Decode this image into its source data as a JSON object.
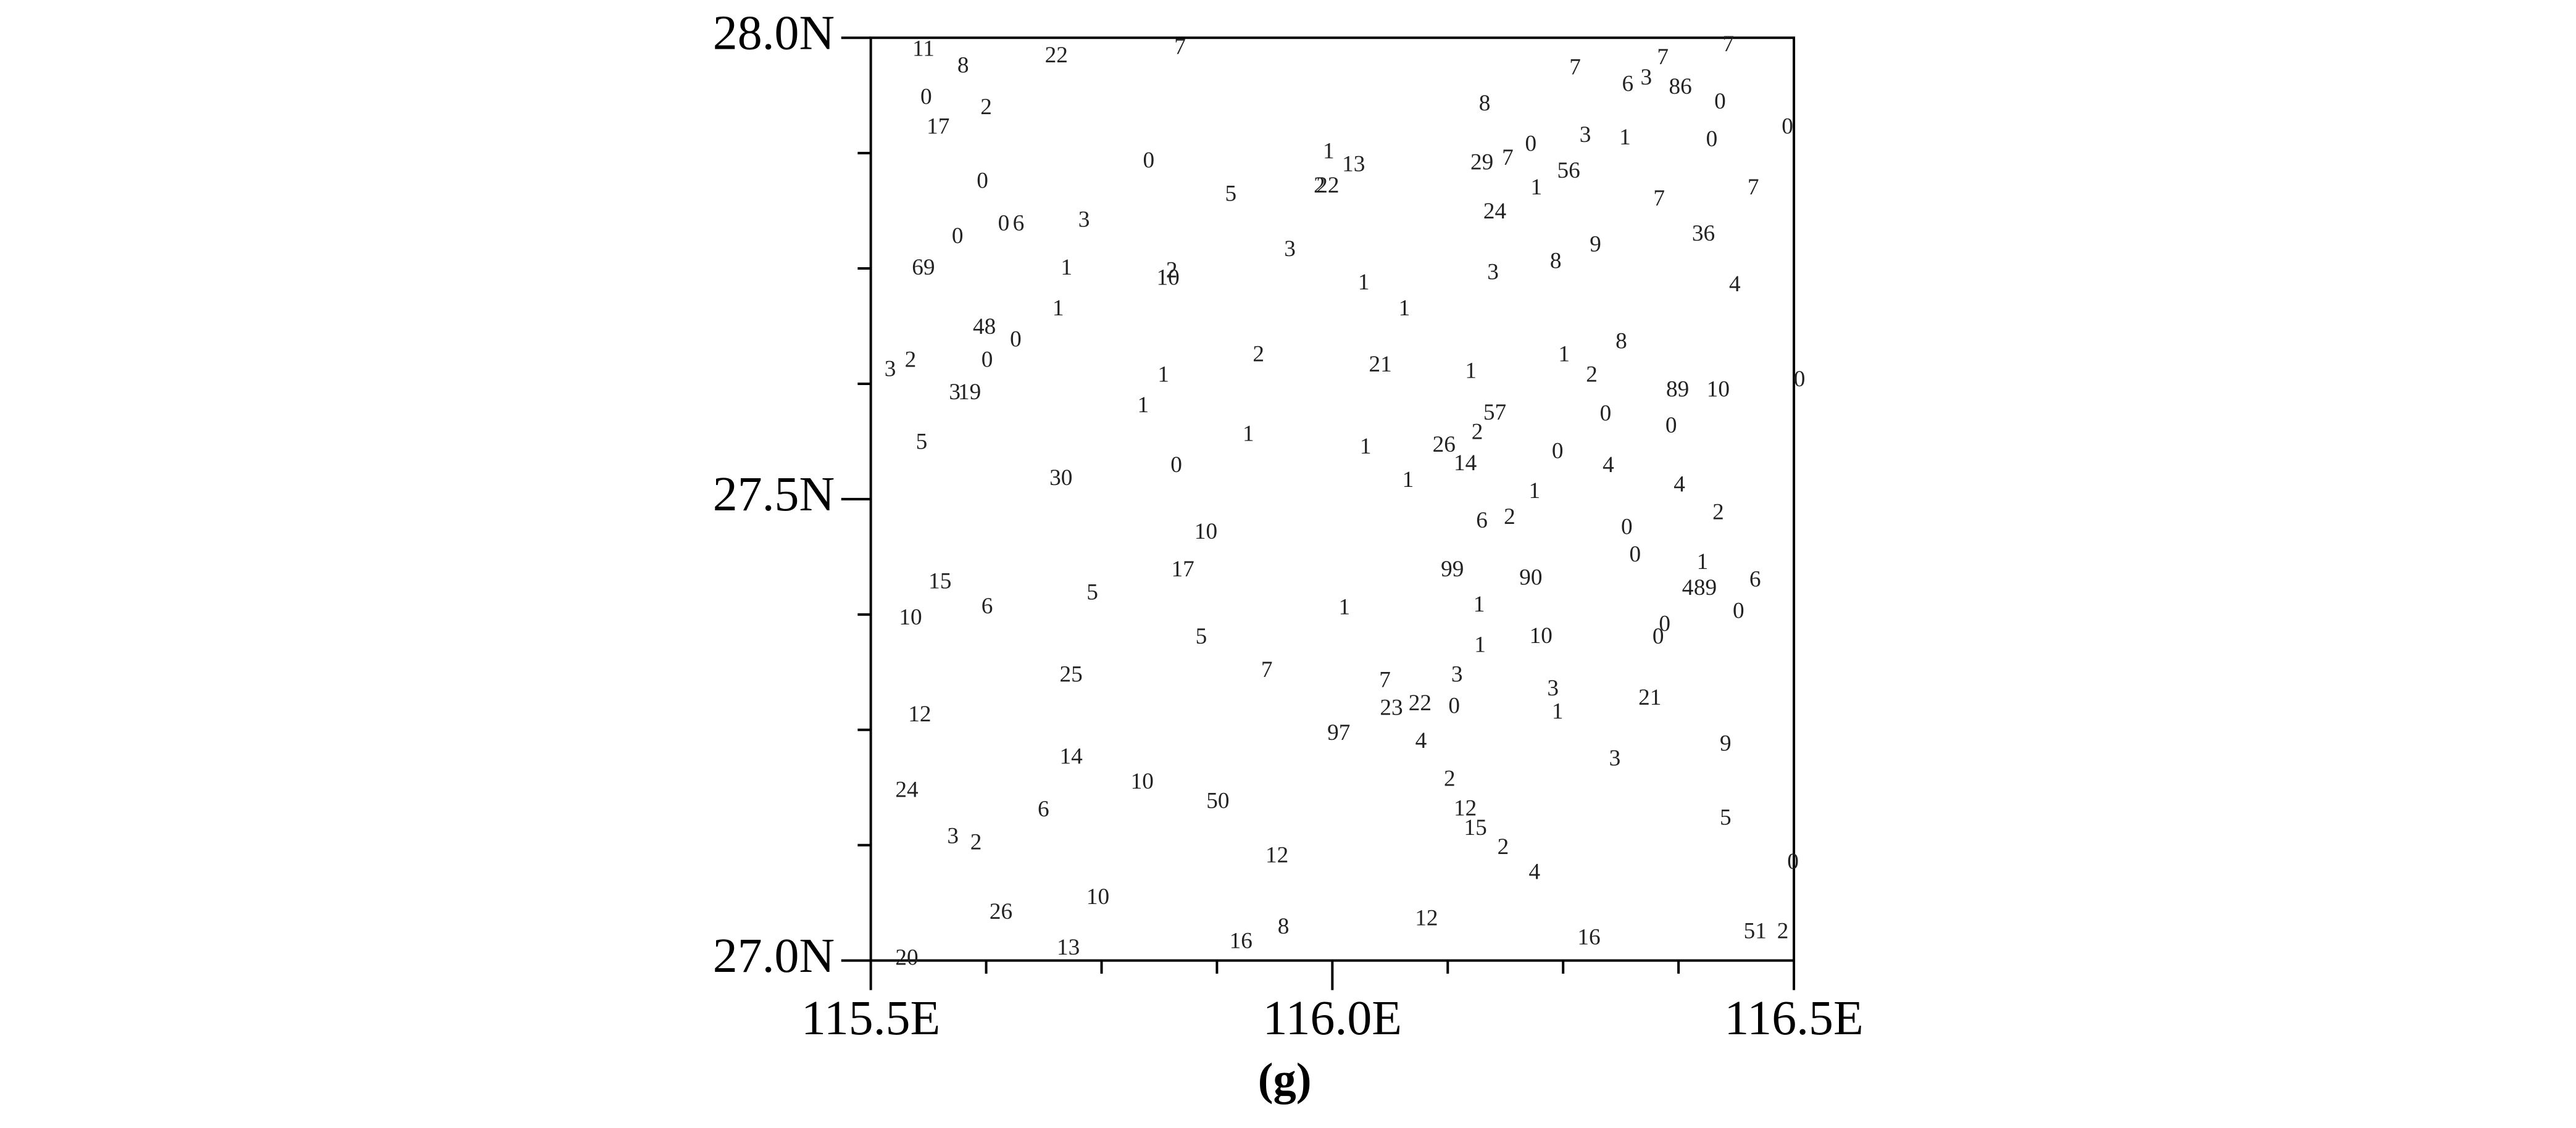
{
  "chart_data": {
    "type": "text-scatter",
    "caption": "(g)",
    "xlim": [
      115.5,
      116.5
    ],
    "ylim": [
      27.0,
      28.0
    ],
    "xticks": [
      {
        "value": 115.5,
        "label": "115.5E"
      },
      {
        "value": 116.0,
        "label": "116.0E"
      },
      {
        "value": 116.5,
        "label": "116.5E"
      }
    ],
    "yticks": [
      {
        "value": 27.0,
        "label": "27.0N"
      },
      {
        "value": 27.5,
        "label": "27.5N"
      },
      {
        "value": 28.0,
        "label": "28.0N"
      }
    ],
    "xminor": [
      115.625,
      115.75,
      115.875,
      116.125,
      116.25,
      116.375
    ],
    "yminor": [
      27.125,
      27.25,
      27.375,
      27.625,
      27.75,
      27.875
    ],
    "x": [
      115.557,
      115.6,
      115.701,
      115.835,
      115.56,
      115.625,
      115.573,
      115.621,
      115.594,
      115.644,
      115.66,
      115.731,
      115.557,
      115.712,
      115.822,
      115.826,
      115.703,
      115.623,
      115.657,
      115.626,
      115.521,
      115.543,
      115.591,
      115.607,
      115.555,
      115.706,
      115.817,
      115.795,
      115.831,
      115.801,
      115.89,
      115.954,
      115.92,
      115.909,
      115.996,
      116.023,
      115.986,
      115.995,
      116.034,
      116.078,
      116.052,
      116.036,
      116.082,
      116.165,
      116.162,
      116.19,
      116.215,
      116.274,
      116.317,
      116.256,
      116.221,
      116.176,
      116.174,
      116.242,
      116.285,
      116.263,
      116.32,
      116.34,
      116.358,
      116.377,
      116.429,
      116.42,
      116.493,
      116.411,
      116.354,
      116.456,
      116.402,
      116.436,
      116.313,
      116.251,
      116.281,
      116.15,
      116.176,
      116.157,
      116.121,
      116.144,
      116.296,
      116.374,
      116.418,
      116.506,
      116.367,
      116.244,
      116.299,
      116.219,
      116.376,
      116.418,
      116.162,
      116.192,
      116.319,
      116.328,
      116.401,
      116.385,
      116.404,
      116.458,
      116.44,
      116.36,
      116.353,
      115.863,
      115.838,
      116.13,
      116.215,
      116.159,
      116.013,
      116.16,
      116.226,
      115.575,
      115.543,
      115.626,
      115.74,
      115.858,
      115.929,
      115.717,
      115.553,
      116.057,
      116.135,
      116.064,
      116.095,
      116.132,
      116.239,
      116.244,
      116.344,
      116.007,
      116.096,
      116.426,
      116.306,
      115.717,
      115.794,
      115.876,
      115.539,
      115.687,
      116.127,
      116.144,
      116.155,
      116.185,
      116.219,
      116.426,
      116.499,
      115.589,
      115.614,
      115.94,
      115.641,
      115.746,
      115.947,
      115.901,
      116.102,
      116.278,
      116.458,
      116.488,
      115.714,
      115.539
    ],
    "y": [
      27.986,
      27.968,
      27.979,
      27.988,
      27.934,
      27.923,
      27.902,
      27.843,
      27.783,
      27.797,
      27.797,
      27.801,
      27.749,
      27.749,
      27.738,
      27.746,
      27.705,
      27.685,
      27.671,
      27.649,
      27.639,
      27.649,
      27.614,
      27.614,
      27.56,
      27.521,
      27.633,
      27.6,
      27.535,
      27.865,
      27.829,
      27.769,
      27.655,
      27.569,
      27.875,
      27.861,
      27.838,
      27.838,
      27.733,
      27.705,
      27.644,
      27.555,
      27.519,
      27.927,
      27.863,
      27.868,
      27.883,
      27.893,
      27.89,
      27.854,
      27.836,
      27.81,
      27.744,
      27.756,
      27.774,
      27.966,
      27.948,
      27.955,
      27.977,
      27.945,
      27.991,
      27.929,
      27.902,
      27.888,
      27.824,
      27.836,
      27.786,
      27.731,
      27.669,
      27.655,
      27.633,
      27.637,
      27.592,
      27.571,
      27.557,
      27.537,
      27.591,
      27.617,
      27.617,
      27.628,
      27.578,
      27.55,
      27.535,
      27.507,
      27.514,
      27.484,
      27.475,
      27.479,
      27.468,
      27.438,
      27.43,
      27.402,
      27.402,
      27.411,
      27.377,
      27.363,
      27.349,
      27.463,
      27.422,
      27.422,
      27.413,
      27.384,
      27.381,
      27.34,
      27.35,
      27.409,
      27.37,
      27.382,
      27.397,
      27.349,
      27.313,
      27.308,
      27.265,
      27.302,
      27.308,
      27.272,
      27.277,
      27.274,
      27.293,
      27.268,
      27.283,
      27.245,
      27.236,
      27.233,
      27.217,
      27.219,
      27.192,
      27.171,
      27.183,
      27.162,
      27.195,
      27.163,
      27.142,
      27.121,
      27.094,
      27.153,
      27.105,
      27.133,
      27.126,
      27.112,
      27.051,
      27.067,
      27.035,
      27.019,
      27.044,
      27.023,
      27.03,
      27.03,
      27.012,
      27.001
    ],
    "values": [
      11,
      8,
      22,
      7,
      0,
      2,
      17,
      0,
      0,
      0,
      6,
      3,
      69,
      1,
      10,
      2,
      1,
      48,
      0,
      0,
      3,
      2,
      3,
      19,
      5,
      30,
      1,
      1,
      0,
      0,
      5,
      3,
      2,
      1,
      1,
      13,
      2,
      22,
      1,
      1,
      21,
      1,
      1,
      8,
      29,
      7,
      0,
      3,
      1,
      56,
      1,
      24,
      3,
      8,
      9,
      7,
      6,
      3,
      7,
      86,
      7,
      0,
      0,
      0,
      7,
      7,
      36,
      4,
      8,
      1,
      2,
      1,
      57,
      2,
      26,
      14,
      0,
      89,
      10,
      0,
      0,
      0,
      4,
      1,
      4,
      2,
      6,
      2,
      0,
      0,
      1,
      4,
      89,
      6,
      0,
      0,
      0,
      10,
      17,
      99,
      90,
      1,
      1,
      1,
      10,
      15,
      10,
      6,
      5,
      5,
      7,
      25,
      12,
      7,
      3,
      23,
      22,
      0,
      3,
      1,
      21,
      97,
      4,
      9,
      3,
      14,
      10,
      50,
      24,
      6,
      2,
      12,
      15,
      2,
      4,
      5,
      0,
      3,
      2,
      12,
      26,
      10,
      8,
      16,
      12,
      16,
      51,
      2,
      13,
      20
    ]
  }
}
